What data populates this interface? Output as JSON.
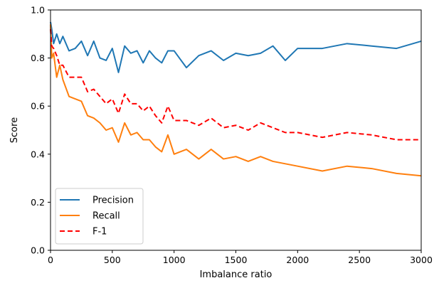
{
  "chart_data": {
    "type": "line",
    "xlabel": "Imbalance ratio",
    "ylabel": "Score",
    "xlim": [
      0,
      3000
    ],
    "ylim": [
      0.0,
      1.0
    ],
    "xticks": [
      "0",
      "500",
      "1000",
      "1500",
      "2000",
      "2500",
      "3000"
    ],
    "yticks": [
      "0.0",
      "0.2",
      "0.4",
      "0.6",
      "0.8",
      "1.0"
    ],
    "grid": false,
    "legend": "lower-left",
    "x": [
      0,
      10,
      25,
      50,
      75,
      100,
      150,
      200,
      250,
      300,
      350,
      400,
      450,
      500,
      550,
      600,
      650,
      700,
      750,
      800,
      850,
      900,
      950,
      1000,
      1100,
      1200,
      1300,
      1400,
      1500,
      1600,
      1700,
      1800,
      1900,
      2000,
      2200,
      2400,
      2600,
      2800,
      3000
    ],
    "series": [
      {
        "name": "Precision",
        "color": "#1f77b4",
        "dash": "solid",
        "values": [
          0.95,
          0.92,
          0.86,
          0.9,
          0.86,
          0.89,
          0.83,
          0.84,
          0.87,
          0.81,
          0.87,
          0.8,
          0.79,
          0.84,
          0.74,
          0.85,
          0.82,
          0.83,
          0.78,
          0.83,
          0.8,
          0.78,
          0.83,
          0.83,
          0.76,
          0.81,
          0.83,
          0.79,
          0.82,
          0.81,
          0.82,
          0.85,
          0.79,
          0.84,
          0.84,
          0.86,
          0.85,
          0.84,
          0.87
        ]
      },
      {
        "name": "Recall",
        "color": "#ff7f0e",
        "dash": "solid",
        "values": [
          0.94,
          0.8,
          0.82,
          0.72,
          0.77,
          0.71,
          0.64,
          0.63,
          0.62,
          0.56,
          0.55,
          0.53,
          0.5,
          0.51,
          0.45,
          0.53,
          0.48,
          0.49,
          0.46,
          0.46,
          0.43,
          0.41,
          0.48,
          0.4,
          0.42,
          0.38,
          0.42,
          0.38,
          0.39,
          0.37,
          0.39,
          0.37,
          0.36,
          0.35,
          0.33,
          0.35,
          0.34,
          0.32,
          0.31
        ]
      },
      {
        "name": "F-1",
        "color": "#ff0000",
        "dash": "dashed",
        "values": [
          0.92,
          0.85,
          0.84,
          0.81,
          0.77,
          0.77,
          0.72,
          0.72,
          0.72,
          0.66,
          0.67,
          0.64,
          0.61,
          0.63,
          0.57,
          0.65,
          0.61,
          0.61,
          0.58,
          0.6,
          0.56,
          0.53,
          0.6,
          0.54,
          0.54,
          0.52,
          0.55,
          0.51,
          0.52,
          0.5,
          0.53,
          0.51,
          0.49,
          0.49,
          0.47,
          0.49,
          0.48,
          0.46,
          0.46
        ]
      }
    ]
  }
}
